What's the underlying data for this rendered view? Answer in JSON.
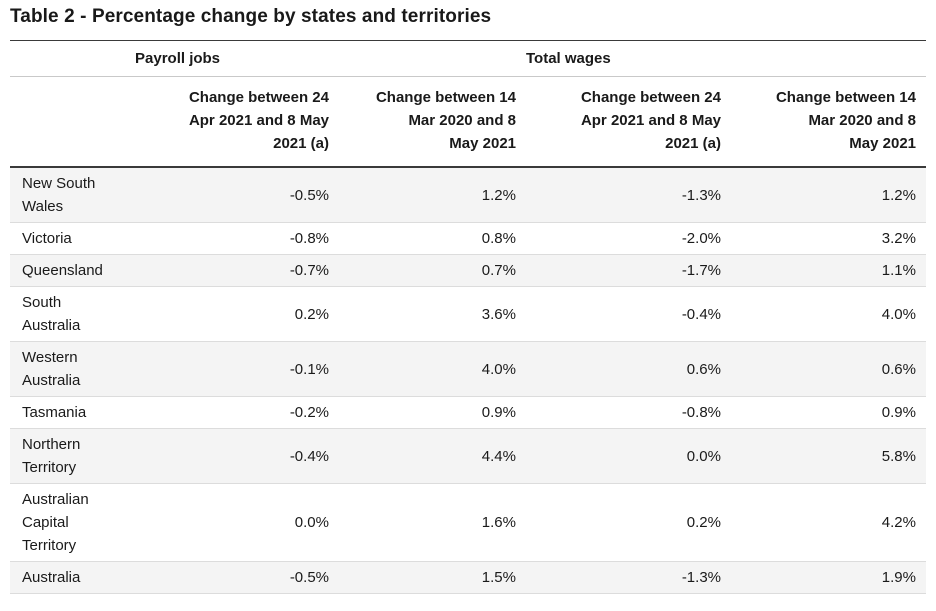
{
  "page": {
    "title": "Table 2 - Percentage change by states and territories"
  },
  "styles": {
    "alt_row_bg": "#f4f4f4",
    "rule_dark": "#3a3a3a",
    "rule_light": "#c9c9c9",
    "row_divider": "#dcdcdc",
    "text_color": "#1a1a1a"
  },
  "chart_data": {
    "type": "table",
    "title": "Table 2 - Percentage change by states and territories",
    "column_groups": [
      {
        "label": "Payroll jobs",
        "span": 2
      },
      {
        "label": "Total wages",
        "span": 2
      }
    ],
    "columns": [
      "Change between 24\nApr 2021 and 8 May\n2021 (a)",
      "Change between 14\nMar 2020 and 8\nMay 2021",
      "Change between 24\nApr 2021 and 8 May\n2021 (a)",
      "Change between 14\nMar 2020 and 8\nMay 2021"
    ],
    "rows": [
      {
        "state": "New South\nWales",
        "values": [
          "-0.5%",
          "1.2%",
          "-1.3%",
          "1.2%"
        ]
      },
      {
        "state": "Victoria",
        "values": [
          "-0.8%",
          "0.8%",
          "-2.0%",
          "3.2%"
        ]
      },
      {
        "state": "Queensland",
        "values": [
          "-0.7%",
          "0.7%",
          "-1.7%",
          "1.1%"
        ]
      },
      {
        "state": "South\nAustralia",
        "values": [
          "0.2%",
          "3.6%",
          "-0.4%",
          "4.0%"
        ]
      },
      {
        "state": "Western\nAustralia",
        "values": [
          "-0.1%",
          "4.0%",
          "0.6%",
          "0.6%"
        ]
      },
      {
        "state": "Tasmania",
        "values": [
          "-0.2%",
          "0.9%",
          "-0.8%",
          "0.9%"
        ]
      },
      {
        "state": "Northern\nTerritory",
        "values": [
          "-0.4%",
          "4.4%",
          "0.0%",
          "5.8%"
        ]
      },
      {
        "state": "Australian\nCapital\nTerritory",
        "values": [
          "0.0%",
          "1.6%",
          "0.2%",
          "4.2%"
        ]
      },
      {
        "state": "Australia",
        "values": [
          "-0.5%",
          "1.5%",
          "-1.3%",
          "1.9%"
        ]
      }
    ]
  }
}
